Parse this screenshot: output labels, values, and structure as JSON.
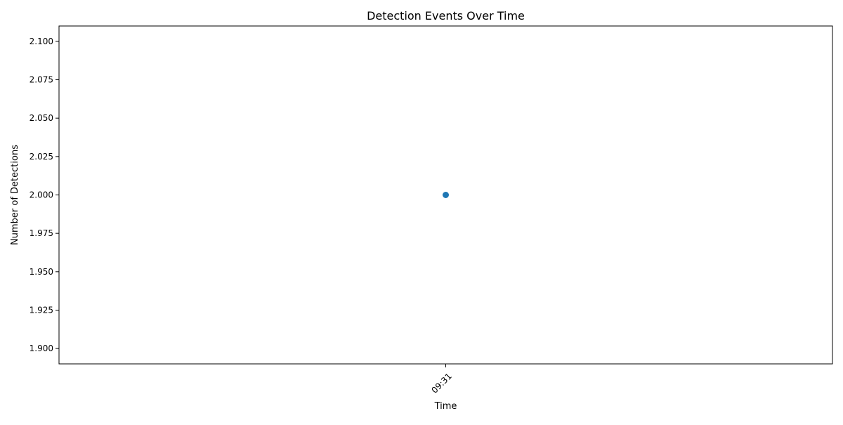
{
  "chart_data": {
    "type": "line",
    "title": "Detection Events Over Time",
    "xlabel": "Time",
    "ylabel": "Number of Detections",
    "x": [
      "09:31"
    ],
    "series": [
      {
        "values": [
          2.0
        ],
        "color": "#1f77b4",
        "marker": "circle"
      }
    ],
    "ylim": [
      1.89,
      2.11
    ],
    "yticks": [
      "1.900",
      "1.925",
      "1.950",
      "1.975",
      "2.000",
      "2.025",
      "2.050",
      "2.075",
      "2.100"
    ],
    "xtick_rotation_deg": 45,
    "grid": false,
    "legend": "none"
  }
}
